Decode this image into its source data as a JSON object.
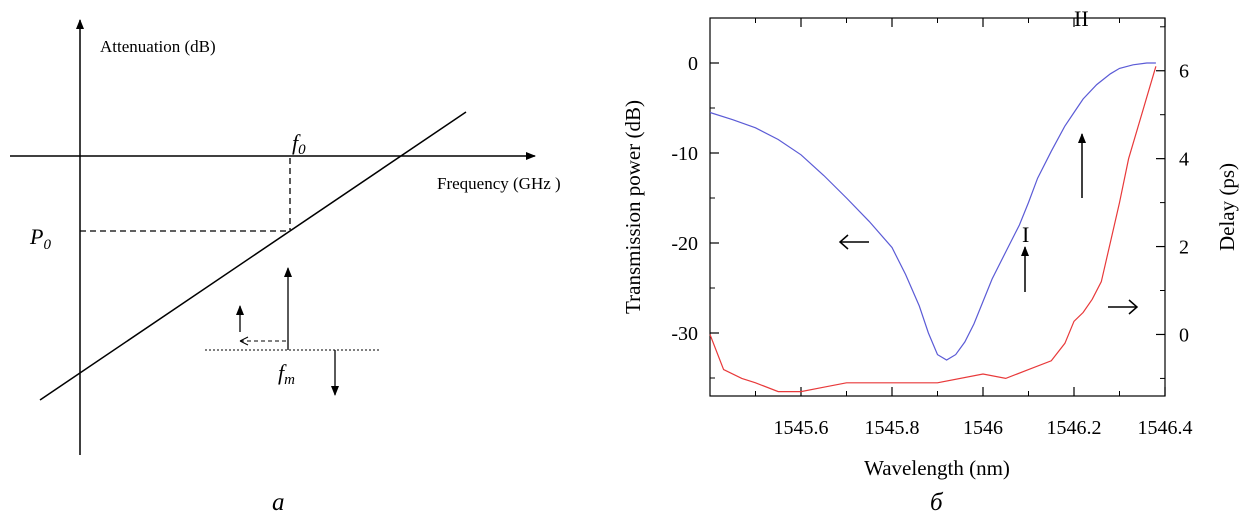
{
  "chart_data": [
    {
      "type": "diagram",
      "panel_label": "a",
      "y_axis_label": "Attenuation (dB)",
      "x_axis_label": "Frequency (GHz )",
      "annotations": {
        "f0": "f",
        "f0_sub": "0",
        "p0": "P",
        "p0_sub": "0",
        "fm": "f",
        "fm_sub": "m"
      }
    },
    {
      "type": "line",
      "panel_label": "б",
      "xlabel": "Wavelength (nm)",
      "ylabel": "Transmission power (dB)",
      "ylabel_right": "Delay (ps)",
      "xlim": [
        1545.4,
        1546.4
      ],
      "ylim": [
        -37,
        5
      ],
      "ylim_right": [
        -1.4,
        7.2
      ],
      "x_ticks": [
        1545.6,
        1545.8,
        1546,
        1546.2,
        1546.4
      ],
      "x_tick_labels": [
        "1545.6",
        "1545.8",
        "1546",
        "1546.2",
        "1546.4"
      ],
      "y_ticks": [
        0,
        -10,
        -20,
        -30
      ],
      "y_tick_labels": [
        "0",
        "-10",
        "-20",
        "-30"
      ],
      "y_ticks_right": [
        0,
        2,
        4,
        6
      ],
      "y_tick_labels_right": [
        "0",
        "2",
        "4",
        "6"
      ],
      "annotations": {
        "point1": "I",
        "point2": "II"
      },
      "colors": {
        "transmission": "#5b5bd6",
        "delay": "#e8393a"
      },
      "series": [
        {
          "axis": "left",
          "color": "#5b5bd6",
          "x": [
            1545.4,
            1545.45,
            1545.5,
            1545.55,
            1545.6,
            1545.65,
            1545.7,
            1545.75,
            1545.8,
            1545.83,
            1545.86,
            1545.88,
            1545.9,
            1545.92,
            1545.94,
            1545.96,
            1545.98,
            1546.0,
            1546.02,
            1546.05,
            1546.08,
            1546.1,
            1546.12,
            1546.15,
            1546.18,
            1546.2,
            1546.22,
            1546.25,
            1546.28,
            1546.3,
            1546.33,
            1546.36,
            1546.38
          ],
          "y": [
            -5.5,
            -6.3,
            -7.2,
            -8.5,
            -10.2,
            -12.5,
            -15,
            -17.6,
            -20.5,
            -23.5,
            -27,
            -30,
            -32.4,
            -33,
            -32.4,
            -31,
            -29,
            -26.5,
            -24,
            -21,
            -18,
            -15.5,
            -12.8,
            -9.8,
            -7,
            -5.5,
            -4,
            -2.4,
            -1.2,
            -0.6,
            -0.2,
            0,
            0
          ]
        },
        {
          "axis": "right",
          "color": "#e8393a",
          "x": [
            1545.4,
            1545.43,
            1545.47,
            1545.5,
            1545.55,
            1545.6,
            1545.65,
            1545.7,
            1545.8,
            1545.9,
            1546.0,
            1546.05,
            1546.1,
            1546.15,
            1546.18,
            1546.2,
            1546.22,
            1546.24,
            1546.26,
            1546.28,
            1546.3,
            1546.32,
            1546.34,
            1546.36,
            1546.38
          ],
          "y": [
            0,
            -0.8,
            -1.0,
            -1.1,
            -1.3,
            -1.3,
            -1.2,
            -1.1,
            -1.1,
            -1.1,
            -0.9,
            -1.0,
            -0.8,
            -0.6,
            -0.2,
            0.3,
            0.5,
            0.8,
            1.2,
            2.1,
            3.0,
            4.0,
            4.7,
            5.4,
            6.1
          ]
        }
      ]
    }
  ]
}
